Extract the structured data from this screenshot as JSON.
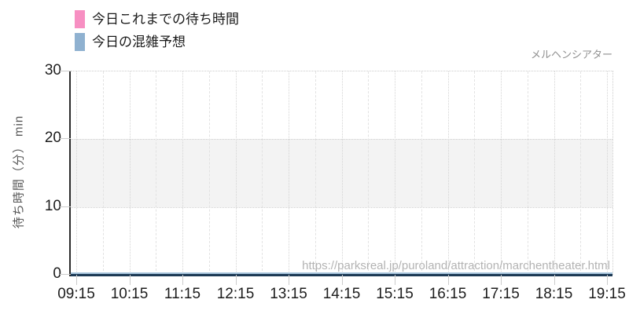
{
  "chart_data": {
    "type": "line",
    "title": "メルヘンシアター",
    "ylabel": "待ち時間（分） min",
    "xlabel": "",
    "x_tick_labels": [
      "09:15",
      "10:15",
      "11:15",
      "12:15",
      "13:15",
      "14:15",
      "15:15",
      "16:15",
      "17:15",
      "18:15",
      "19:15"
    ],
    "y_tick_labels": [
      "0",
      "10",
      "20",
      "30"
    ],
    "ylim": [
      0,
      30
    ],
    "grid": true,
    "legend_position": "top-left",
    "band": {
      "from": 10,
      "to": 20,
      "color": "#f3f3f3"
    },
    "series": [
      {
        "name": "今日これまでの待ち時間",
        "color": "#f78fc2",
        "values": []
      },
      {
        "name": "今日の混雑予想",
        "color": "#8fb1d0",
        "values": [
          0,
          0,
          0,
          0,
          0,
          0,
          0,
          0,
          0,
          0,
          0
        ]
      }
    ],
    "watermark": "https://parksreal.jp/puroland/attraction/marchentheater.html",
    "colors": {
      "axis_line": "#1d3a55",
      "y_axis_line": "#2b2b2b",
      "forecast_line": "#a9c6dd",
      "grid": "#d4d4d4",
      "tick_text": "#1c1c1c",
      "muted_text": "#8f8f8f",
      "watermark_text": "#b3b3b3"
    }
  }
}
